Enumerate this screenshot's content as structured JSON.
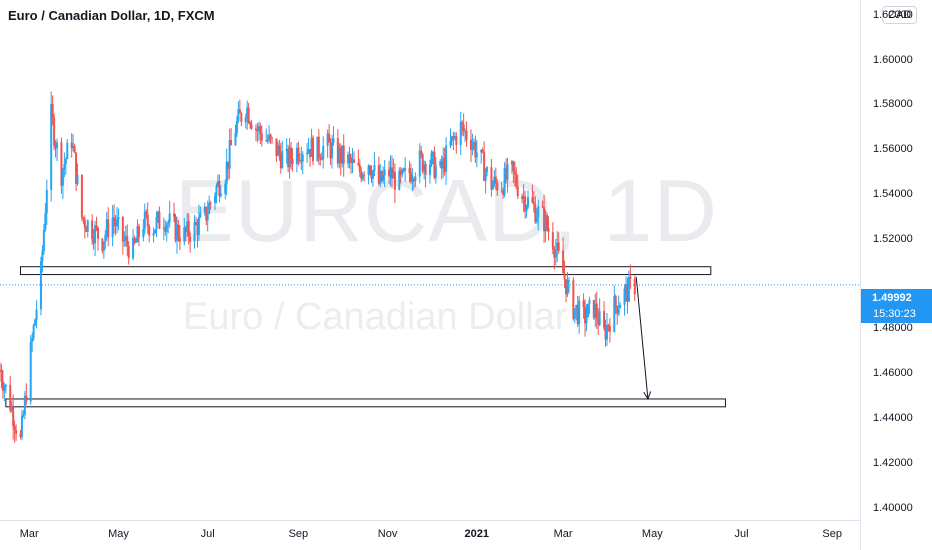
{
  "header": {
    "title": "Euro / Canadian Dollar, 1D, FXCM"
  },
  "watermark": {
    "symbol": "EURCAD, 1D",
    "description": "Euro / Canadian Dollar"
  },
  "price_axis": {
    "currency_button": "CAD",
    "ticks": [
      "1.62000",
      "1.60000",
      "1.58000",
      "1.56000",
      "1.54000",
      "1.52000",
      "1.48000",
      "1.46000",
      "1.44000",
      "1.42000",
      "1.40000"
    ]
  },
  "time_axis": {
    "ticks": [
      {
        "label": "Mar",
        "bold": false
      },
      {
        "label": "May",
        "bold": false
      },
      {
        "label": "Jul",
        "bold": false
      },
      {
        "label": "Sep",
        "bold": false
      },
      {
        "label": "Nov",
        "bold": false
      },
      {
        "label": "2021",
        "bold": true
      },
      {
        "label": "Mar",
        "bold": false
      },
      {
        "label": "May",
        "bold": false
      },
      {
        "label": "Jul",
        "bold": false
      },
      {
        "label": "Sep",
        "bold": false
      }
    ]
  },
  "last_price": {
    "price": "1.49992",
    "countdown": "15:30:23"
  },
  "colors": {
    "up": "#26a5f2",
    "down": "#ef5350",
    "accent": "#2196f3",
    "grid": "#e0e3eb"
  },
  "chart_data": {
    "type": "candlestick",
    "symbol": "EURCAD",
    "interval": "1D",
    "x_range": [
      "2020-02-10",
      "2021-09-20"
    ],
    "y_range": [
      1.395,
      1.627
    ],
    "close_path": [
      [
        "2020-02-10",
        1.462
      ],
      [
        "2020-02-17",
        1.447
      ],
      [
        "2020-02-24",
        1.43
      ],
      [
        "2020-03-02",
        1.47
      ],
      [
        "2020-03-09",
        1.505
      ],
      [
        "2020-03-16",
        1.575
      ],
      [
        "2020-03-23",
        1.55
      ],
      [
        "2020-03-30",
        1.565
      ],
      [
        "2020-04-06",
        1.53
      ],
      [
        "2020-04-13",
        1.525
      ],
      [
        "2020-04-20",
        1.52
      ],
      [
        "2020-04-27",
        1.53
      ],
      [
        "2020-05-04",
        1.52
      ],
      [
        "2020-05-11",
        1.515
      ],
      [
        "2020-05-18",
        1.528
      ],
      [
        "2020-05-25",
        1.526
      ],
      [
        "2020-06-01",
        1.53
      ],
      [
        "2020-06-08",
        1.525
      ],
      [
        "2020-06-15",
        1.522
      ],
      [
        "2020-06-22",
        1.525
      ],
      [
        "2020-06-29",
        1.53
      ],
      [
        "2020-07-06",
        1.542
      ],
      [
        "2020-07-13",
        1.55
      ],
      [
        "2020-07-20",
        1.57
      ],
      [
        "2020-07-27",
        1.58
      ],
      [
        "2020-08-03",
        1.57
      ],
      [
        "2020-08-10",
        1.565
      ],
      [
        "2020-08-17",
        1.56
      ],
      [
        "2020-08-24",
        1.555
      ],
      [
        "2020-08-31",
        1.56
      ],
      [
        "2020-09-07",
        1.562
      ],
      [
        "2020-09-14",
        1.56
      ],
      [
        "2020-09-21",
        1.562
      ],
      [
        "2020-09-28",
        1.558
      ],
      [
        "2020-10-05",
        1.555
      ],
      [
        "2020-10-12",
        1.55
      ],
      [
        "2020-10-19",
        1.555
      ],
      [
        "2020-10-26",
        1.545
      ],
      [
        "2020-11-02",
        1.55
      ],
      [
        "2020-11-09",
        1.545
      ],
      [
        "2020-11-16",
        1.55
      ],
      [
        "2020-11-23",
        1.555
      ],
      [
        "2020-11-30",
        1.555
      ],
      [
        "2020-12-07",
        1.55
      ],
      [
        "2020-12-14",
        1.562
      ],
      [
        "2020-12-21",
        1.57
      ],
      [
        "2020-12-28",
        1.565
      ],
      [
        "2021-01-04",
        1.555
      ],
      [
        "2021-01-11",
        1.545
      ],
      [
        "2021-01-18",
        1.545
      ],
      [
        "2021-01-25",
        1.55
      ],
      [
        "2021-02-01",
        1.54
      ],
      [
        "2021-02-08",
        1.535
      ],
      [
        "2021-02-15",
        1.53
      ],
      [
        "2021-02-22",
        1.52
      ],
      [
        "2021-03-01",
        1.505
      ],
      [
        "2021-03-08",
        1.49
      ],
      [
        "2021-03-15",
        1.485
      ],
      [
        "2021-03-22",
        1.49
      ],
      [
        "2021-03-29",
        1.478
      ],
      [
        "2021-04-05",
        1.49
      ],
      [
        "2021-04-12",
        1.496
      ],
      [
        "2021-04-19",
        1.5
      ]
    ]
  },
  "drawings": {
    "zones": [
      {
        "name": "resistance-support-zone",
        "from": "2020-02-24",
        "to": "2021-06-10",
        "low": 1.5045,
        "high": 1.508
      },
      {
        "name": "target-zone",
        "from": "2020-02-14",
        "to": "2021-06-20",
        "low": 1.4455,
        "high": 1.449
      }
    ],
    "arrow": {
      "from": [
        "2021-04-20",
        1.5035
      ],
      "to": [
        "2021-04-28",
        1.449
      ]
    },
    "last_price_line": 1.49992
  }
}
